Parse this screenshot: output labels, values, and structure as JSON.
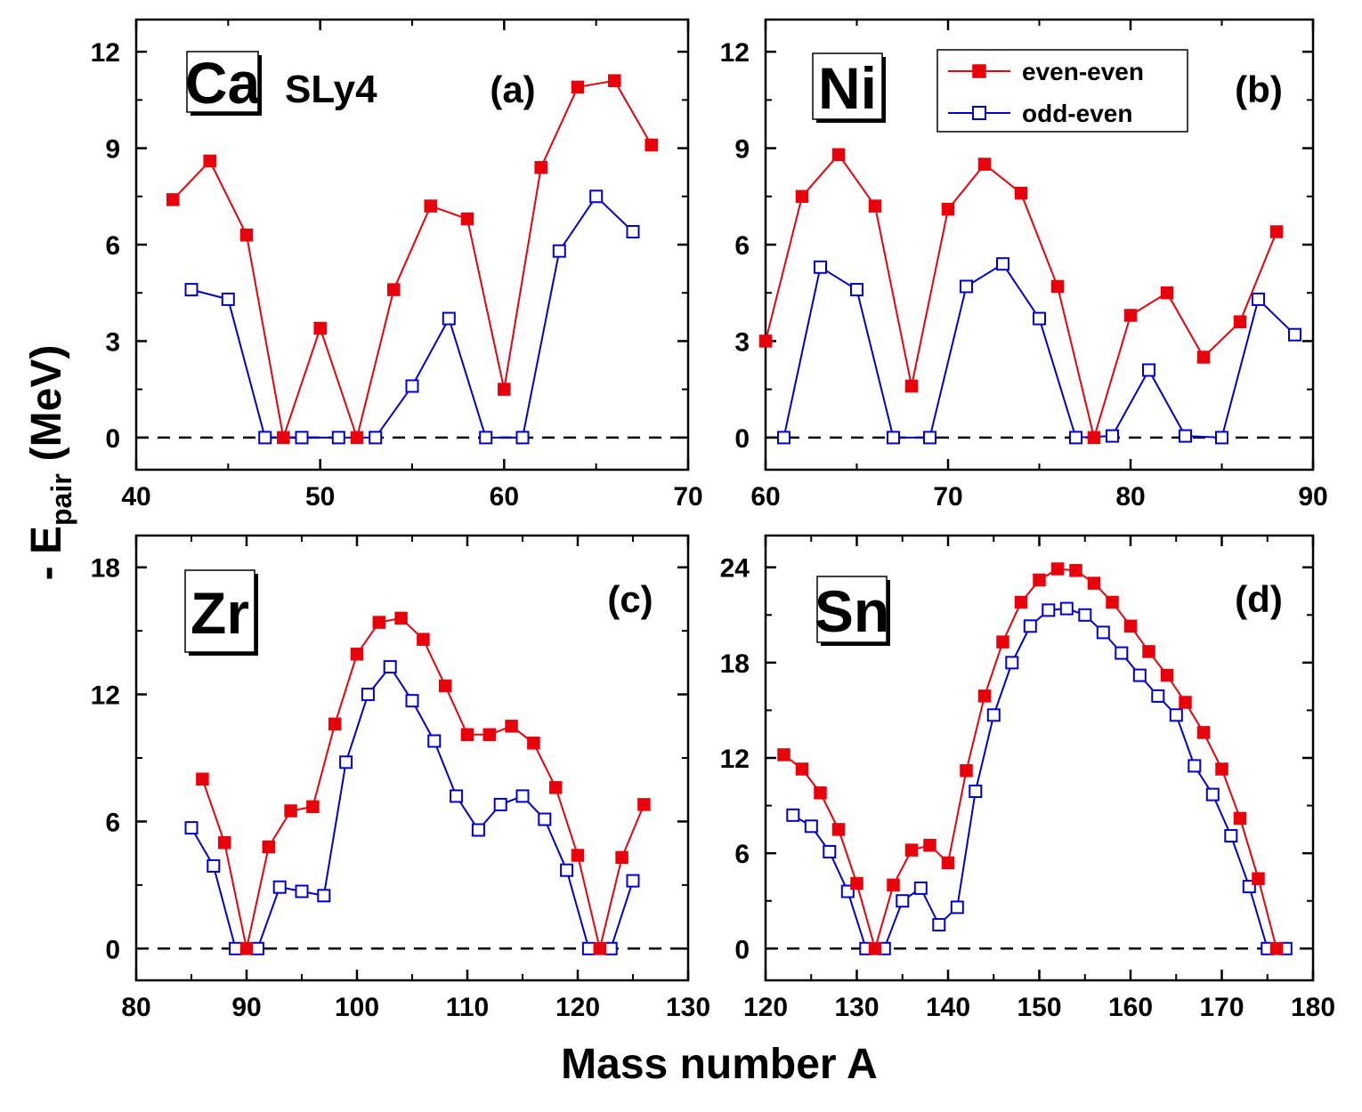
{
  "chart_data": {
    "type": "line",
    "xlabel": "Mass number A",
    "ylabel": "- E",
    "ylabel_subscript": "pair",
    "ylabel_unit": "(MeV)",
    "functional": "SLy4",
    "legend": [
      "even-even",
      "odd-even"
    ],
    "colors": {
      "even_even": "#e8000b",
      "odd_even": "#0000cc",
      "zero_line": "#000000"
    },
    "panels": [
      {
        "id": "a",
        "panel_label": "(a)",
        "element": "Ca",
        "xlim": [
          40,
          70
        ],
        "ylim": [
          -1,
          13
        ],
        "xticks": [
          "40",
          "50",
          "60",
          "70"
        ],
        "yticks": [
          "0",
          "3",
          "6",
          "9",
          "12"
        ],
        "series": [
          {
            "name": "even-even",
            "x": [
              42,
              44,
              46,
              48,
              50,
              52,
              54,
              56,
              58,
              60,
              62,
              64,
              66,
              68
            ],
            "y": [
              7.4,
              8.6,
              6.3,
              0,
              3.4,
              0,
              4.6,
              7.2,
              6.8,
              1.5,
              8.4,
              10.9,
              11.1,
              9.1
            ]
          },
          {
            "name": "odd-even",
            "x": [
              43,
              45,
              47,
              49,
              51,
              53,
              55,
              57,
              59,
              61,
              63,
              65,
              67
            ],
            "y": [
              4.6,
              4.3,
              0,
              0,
              0,
              0,
              1.6,
              3.7,
              0,
              0,
              5.8,
              7.5,
              6.4
            ]
          }
        ]
      },
      {
        "id": "b",
        "panel_label": "(b)",
        "element": "Ni",
        "xlim": [
          60,
          90
        ],
        "ylim": [
          -1,
          13
        ],
        "xticks": [
          "60",
          "70",
          "80",
          "90"
        ],
        "yticks": [
          "0",
          "3",
          "6",
          "9",
          "12"
        ],
        "series": [
          {
            "name": "even-even",
            "x": [
              60,
              62,
              64,
              66,
              68,
              70,
              72,
              74,
              76,
              78,
              80,
              82,
              84,
              86,
              88
            ],
            "y": [
              3.0,
              7.5,
              8.8,
              7.2,
              1.6,
              7.1,
              8.5,
              7.6,
              4.7,
              0,
              3.8,
              4.5,
              2.5,
              3.6,
              6.4
            ]
          },
          {
            "name": "odd-even",
            "x": [
              61,
              63,
              65,
              67,
              69,
              71,
              73,
              75,
              77,
              79,
              81,
              83,
              85,
              87,
              89
            ],
            "y": [
              0,
              5.3,
              4.6,
              0,
              0,
              4.7,
              5.4,
              3.7,
              0,
              0.05,
              2.1,
              0.05,
              0,
              4.3,
              3.2
            ]
          }
        ]
      },
      {
        "id": "c",
        "panel_label": "(c)",
        "element": "Zr",
        "xlim": [
          80,
          130
        ],
        "ylim": [
          -1.5,
          19.5
        ],
        "xticks": [
          "80",
          "90",
          "100",
          "110",
          "120",
          "130"
        ],
        "yticks": [
          "0",
          "6",
          "12",
          "18"
        ],
        "series": [
          {
            "name": "even-even",
            "x": [
              86,
              88,
              90,
              92,
              94,
              96,
              98,
              100,
              102,
              104,
              106,
              108,
              110,
              112,
              114,
              116,
              118,
              120,
              122,
              124,
              126
            ],
            "y": [
              8.0,
              5.0,
              0,
              4.8,
              6.5,
              6.7,
              10.6,
              13.9,
              15.4,
              15.6,
              14.6,
              12.4,
              10.1,
              10.1,
              10.5,
              9.7,
              7.6,
              4.4,
              0,
              4.3,
              6.8
            ]
          },
          {
            "name": "odd-even",
            "x": [
              85,
              87,
              89,
              91,
              93,
              95,
              97,
              99,
              101,
              103,
              105,
              107,
              109,
              111,
              113,
              115,
              117,
              119,
              121,
              123,
              125
            ],
            "y": [
              5.7,
              3.9,
              0,
              0,
              2.9,
              2.7,
              2.5,
              8.8,
              12.0,
              13.3,
              11.7,
              9.8,
              7.2,
              5.6,
              6.8,
              7.2,
              6.1,
              3.7,
              0,
              0,
              3.2
            ]
          }
        ]
      },
      {
        "id": "d",
        "panel_label": "(d)",
        "element": "Sn",
        "xlim": [
          120,
          180
        ],
        "ylim": [
          -2,
          26
        ],
        "xticks": [
          "120",
          "130",
          "140",
          "150",
          "160",
          "170",
          "180"
        ],
        "yticks": [
          "0",
          "6",
          "12",
          "18",
          "24"
        ],
        "series": [
          {
            "name": "even-even",
            "x": [
              122,
              124,
              126,
              128,
              130,
              132,
              134,
              136,
              138,
              140,
              142,
              144,
              146,
              148,
              150,
              152,
              154,
              156,
              158,
              160,
              162,
              164,
              166,
              168,
              170,
              172,
              174,
              176
            ],
            "y": [
              12.2,
              11.3,
              9.8,
              7.5,
              4.1,
              0,
              4.0,
              6.2,
              6.5,
              5.4,
              11.2,
              15.9,
              19.3,
              21.8,
              23.2,
              23.9,
              23.8,
              23.0,
              21.8,
              20.3,
              18.7,
              17.2,
              15.5,
              13.6,
              11.3,
              8.2,
              4.4,
              0
            ]
          },
          {
            "name": "odd-even",
            "x": [
              123,
              125,
              127,
              129,
              131,
              133,
              135,
              137,
              139,
              141,
              143,
              145,
              147,
              149,
              151,
              153,
              155,
              157,
              159,
              161,
              163,
              165,
              167,
              169,
              171,
              173,
              175,
              177
            ],
            "y": [
              8.4,
              7.7,
              6.1,
              3.6,
              0,
              0,
              3.0,
              3.8,
              1.5,
              2.6,
              9.9,
              14.7,
              18.0,
              20.3,
              21.3,
              21.4,
              21.0,
              19.9,
              18.6,
              17.2,
              15.9,
              14.7,
              11.5,
              9.7,
              7.1,
              3.9,
              0,
              0
            ]
          }
        ]
      }
    ]
  }
}
